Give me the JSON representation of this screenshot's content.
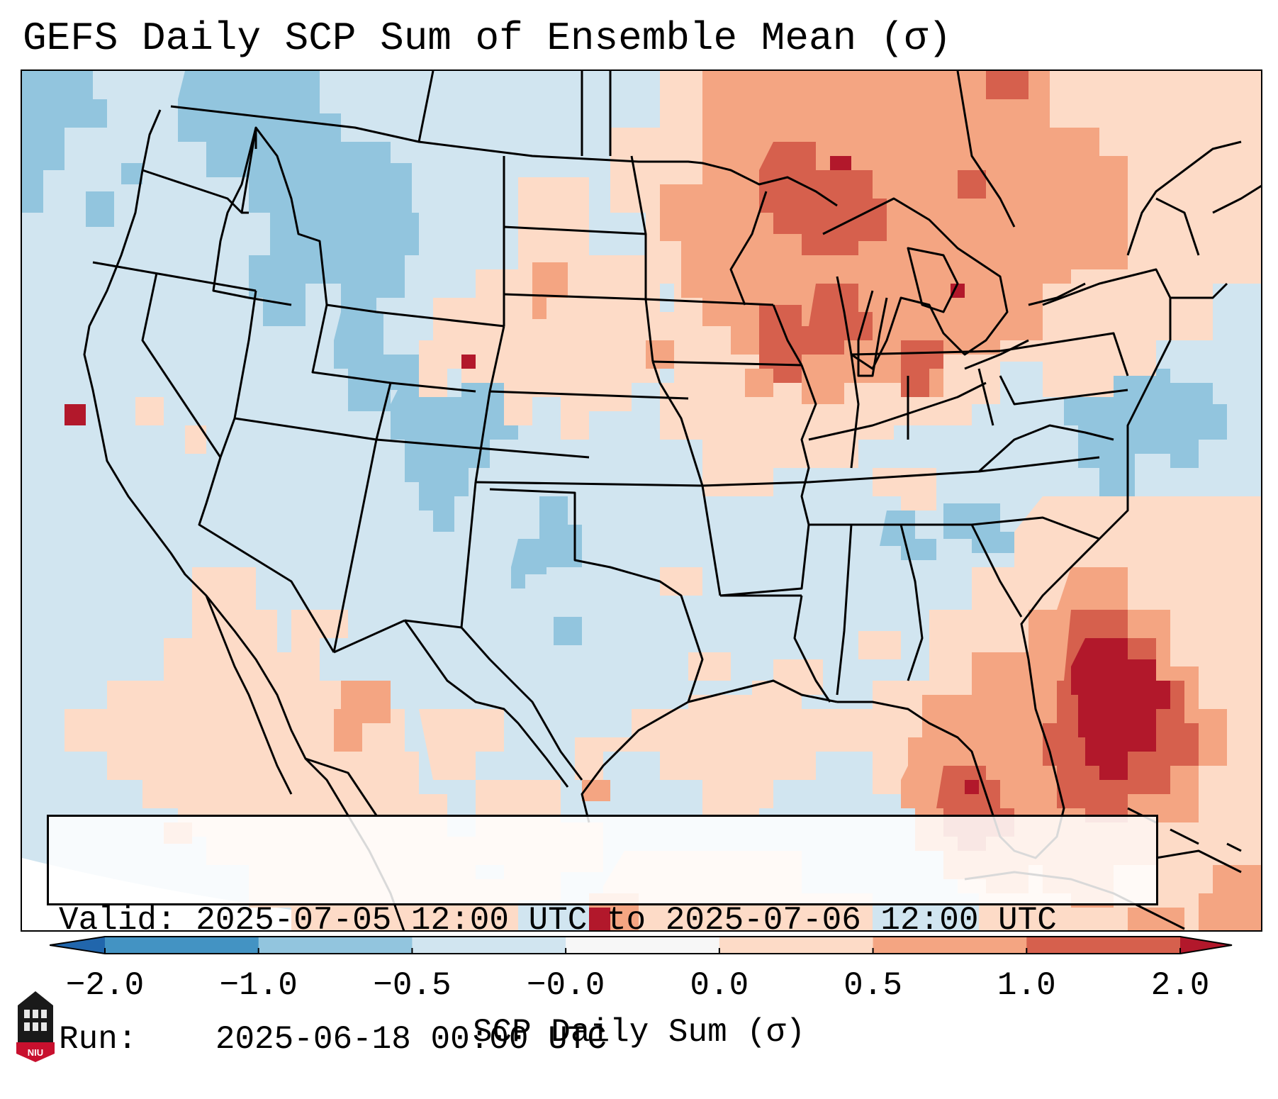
{
  "title": "GEFS Daily SCP Sum of Ensemble Mean (σ)",
  "info": {
    "valid_label": "Valid:",
    "valid_value": "2025-07-05 12:00 UTC to 2025-07-06 12:00 UTC",
    "run_label": "Run:",
    "run_value": "2025-06-18 00:00 UTC"
  },
  "colorbar": {
    "label": "SCP Daily Sum (σ)",
    "ticks": [
      "−2.0",
      "−1.0",
      "−0.5",
      "−0.0",
      "0.0",
      "0.5",
      "1.0",
      "2.0"
    ],
    "bins": [
      {
        "from": "<-2.0",
        "color": "#2166ac"
      },
      {
        "from": "-2.0",
        "to": "-1.0",
        "color": "#4393c3"
      },
      {
        "from": "-1.0",
        "to": "-0.5",
        "color": "#92c5de"
      },
      {
        "from": "-0.5",
        "to": "-0.0",
        "color": "#d1e5f0"
      },
      {
        "from": "-0.0",
        "to": "0.0",
        "color": "#f7f7f7"
      },
      {
        "from": "0.0",
        "to": "0.5",
        "color": "#fddbc7"
      },
      {
        "from": "0.5",
        "to": "1.0",
        "color": "#f4a582"
      },
      {
        "from": "1.0",
        "to": "2.0",
        "color": "#d6604d"
      },
      {
        "from": ">2.0",
        "color": "#b2182b"
      }
    ]
  },
  "colors": {
    "neutral_blue": "#d1e5f0",
    "light_blue": "#92c5de",
    "light_red": "#fddbc7",
    "mid_red": "#f4a582",
    "red": "#d6604d",
    "dark_red": "#b2182b"
  },
  "logo": {
    "text": "NIU",
    "color": "#c8102e"
  }
}
